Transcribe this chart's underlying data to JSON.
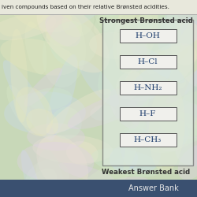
{
  "title_top": "iven compounds based on their relative Brønsted acidities.",
  "strongest_label": "Strongest Brønsted acid",
  "weakest_label": "Weakest Brønsted acid",
  "answer_bank_label": "Answer Bank",
  "compounds": [
    "H–OH",
    "H–Cl",
    "H–NH₂",
    "H–F",
    "H–CH₃"
  ],
  "bg_swirl": "#c8d8b8",
  "box_fill": "#f0f0ec",
  "box_border": "#555555",
  "outer_box_fill": "#dce8dc",
  "outer_box_border": "#666666",
  "answer_bank_bg": "#3a5070",
  "answer_bank_fg": "#e8e8e8",
  "title_color": "#222222",
  "label_color": "#333333",
  "compound_color": "#1a3a6a",
  "title_bg": "#e8e8dc"
}
